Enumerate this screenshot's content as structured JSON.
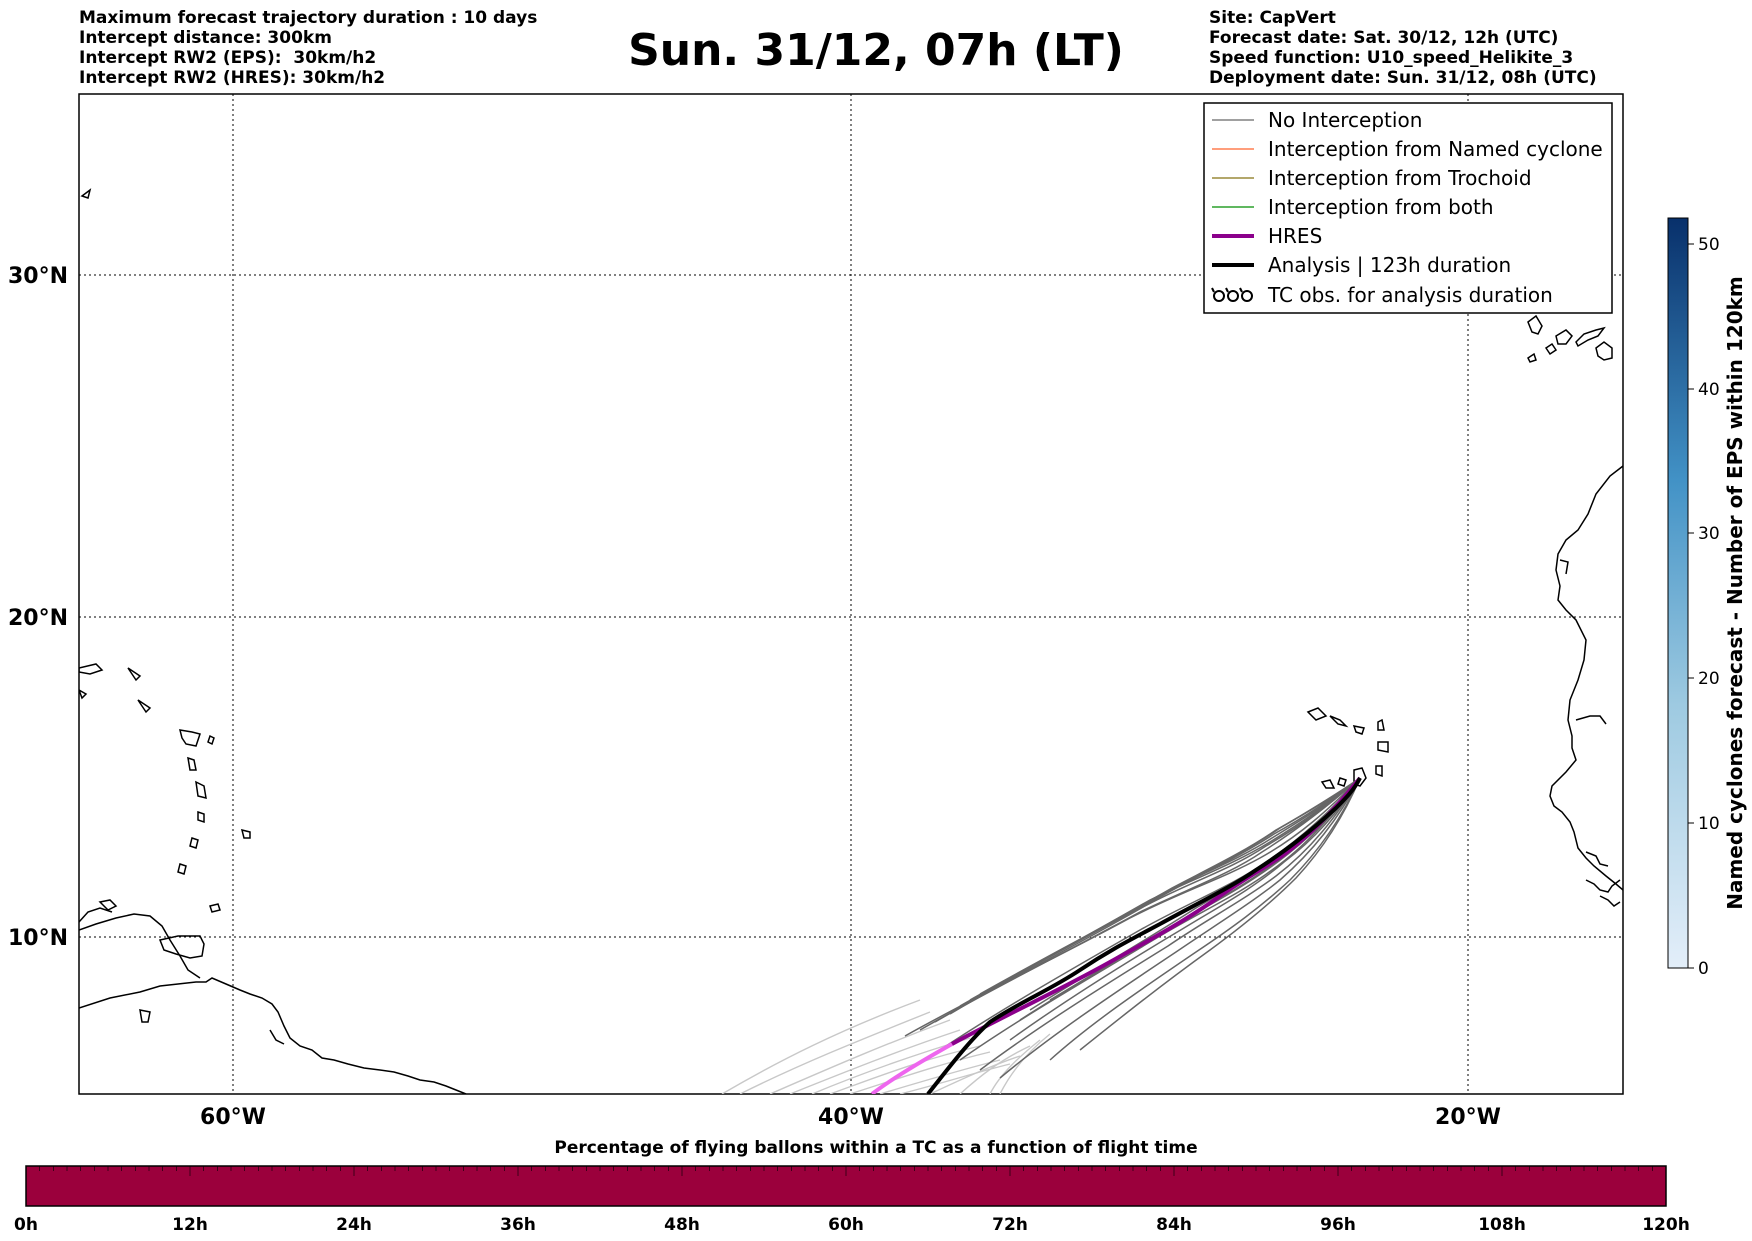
{
  "header": {
    "left": [
      "Maximum forecast trajectory duration : 10 days",
      "Intercept distance: 300km",
      "Intercept RW2 (EPS):  30km/h2",
      "Intercept RW2 (HRES): 30km/h2"
    ],
    "title": "Sun. 31/12, 07h (LT)",
    "right": [
      "Site: CapVert",
      "Forecast date: Sat. 30/12, 12h (UTC)",
      "Speed function: U10_speed_Helikite_3",
      "Deployment date: Sun. 31/12, 08h (UTC)"
    ]
  },
  "map": {
    "lat_labels": [
      "30°N",
      "20°N",
      "10°N"
    ],
    "lon_labels": [
      "60°W",
      "40°W",
      "20°W"
    ],
    "grid": "dotted"
  },
  "legend": {
    "items": [
      {
        "label": "No Interception",
        "color": "#808080"
      },
      {
        "label": "Interception from Named cyclone",
        "color": "#ff7f50"
      },
      {
        "label": "Interception from Trochoid",
        "color": "#9a8a3a"
      },
      {
        "label": "Interception from both",
        "color": "#2ca02c"
      },
      {
        "label": "HRES",
        "color": "#8b008b"
      },
      {
        "label": "Analysis | 123h duration",
        "color": "#000000"
      },
      {
        "label": "TC obs. for analysis duration",
        "color": "#000000",
        "icon": "cyclone-symbols-icon"
      }
    ]
  },
  "colorbar": {
    "label": "Named cyclones forecast - Number of EPS within 120km",
    "ticks": [
      "0",
      "10",
      "20",
      "30",
      "40",
      "50"
    ],
    "color_low": "#e3eef9",
    "color_high": "#08306b"
  },
  "percent_bar": {
    "title": "Percentage of flying ballons within a TC as a function of flight time",
    "color": "#9b003c",
    "ticks": [
      "0h",
      "12h",
      "24h",
      "36h",
      "48h",
      "60h",
      "72h",
      "84h",
      "96h",
      "108h",
      "120h"
    ]
  }
}
